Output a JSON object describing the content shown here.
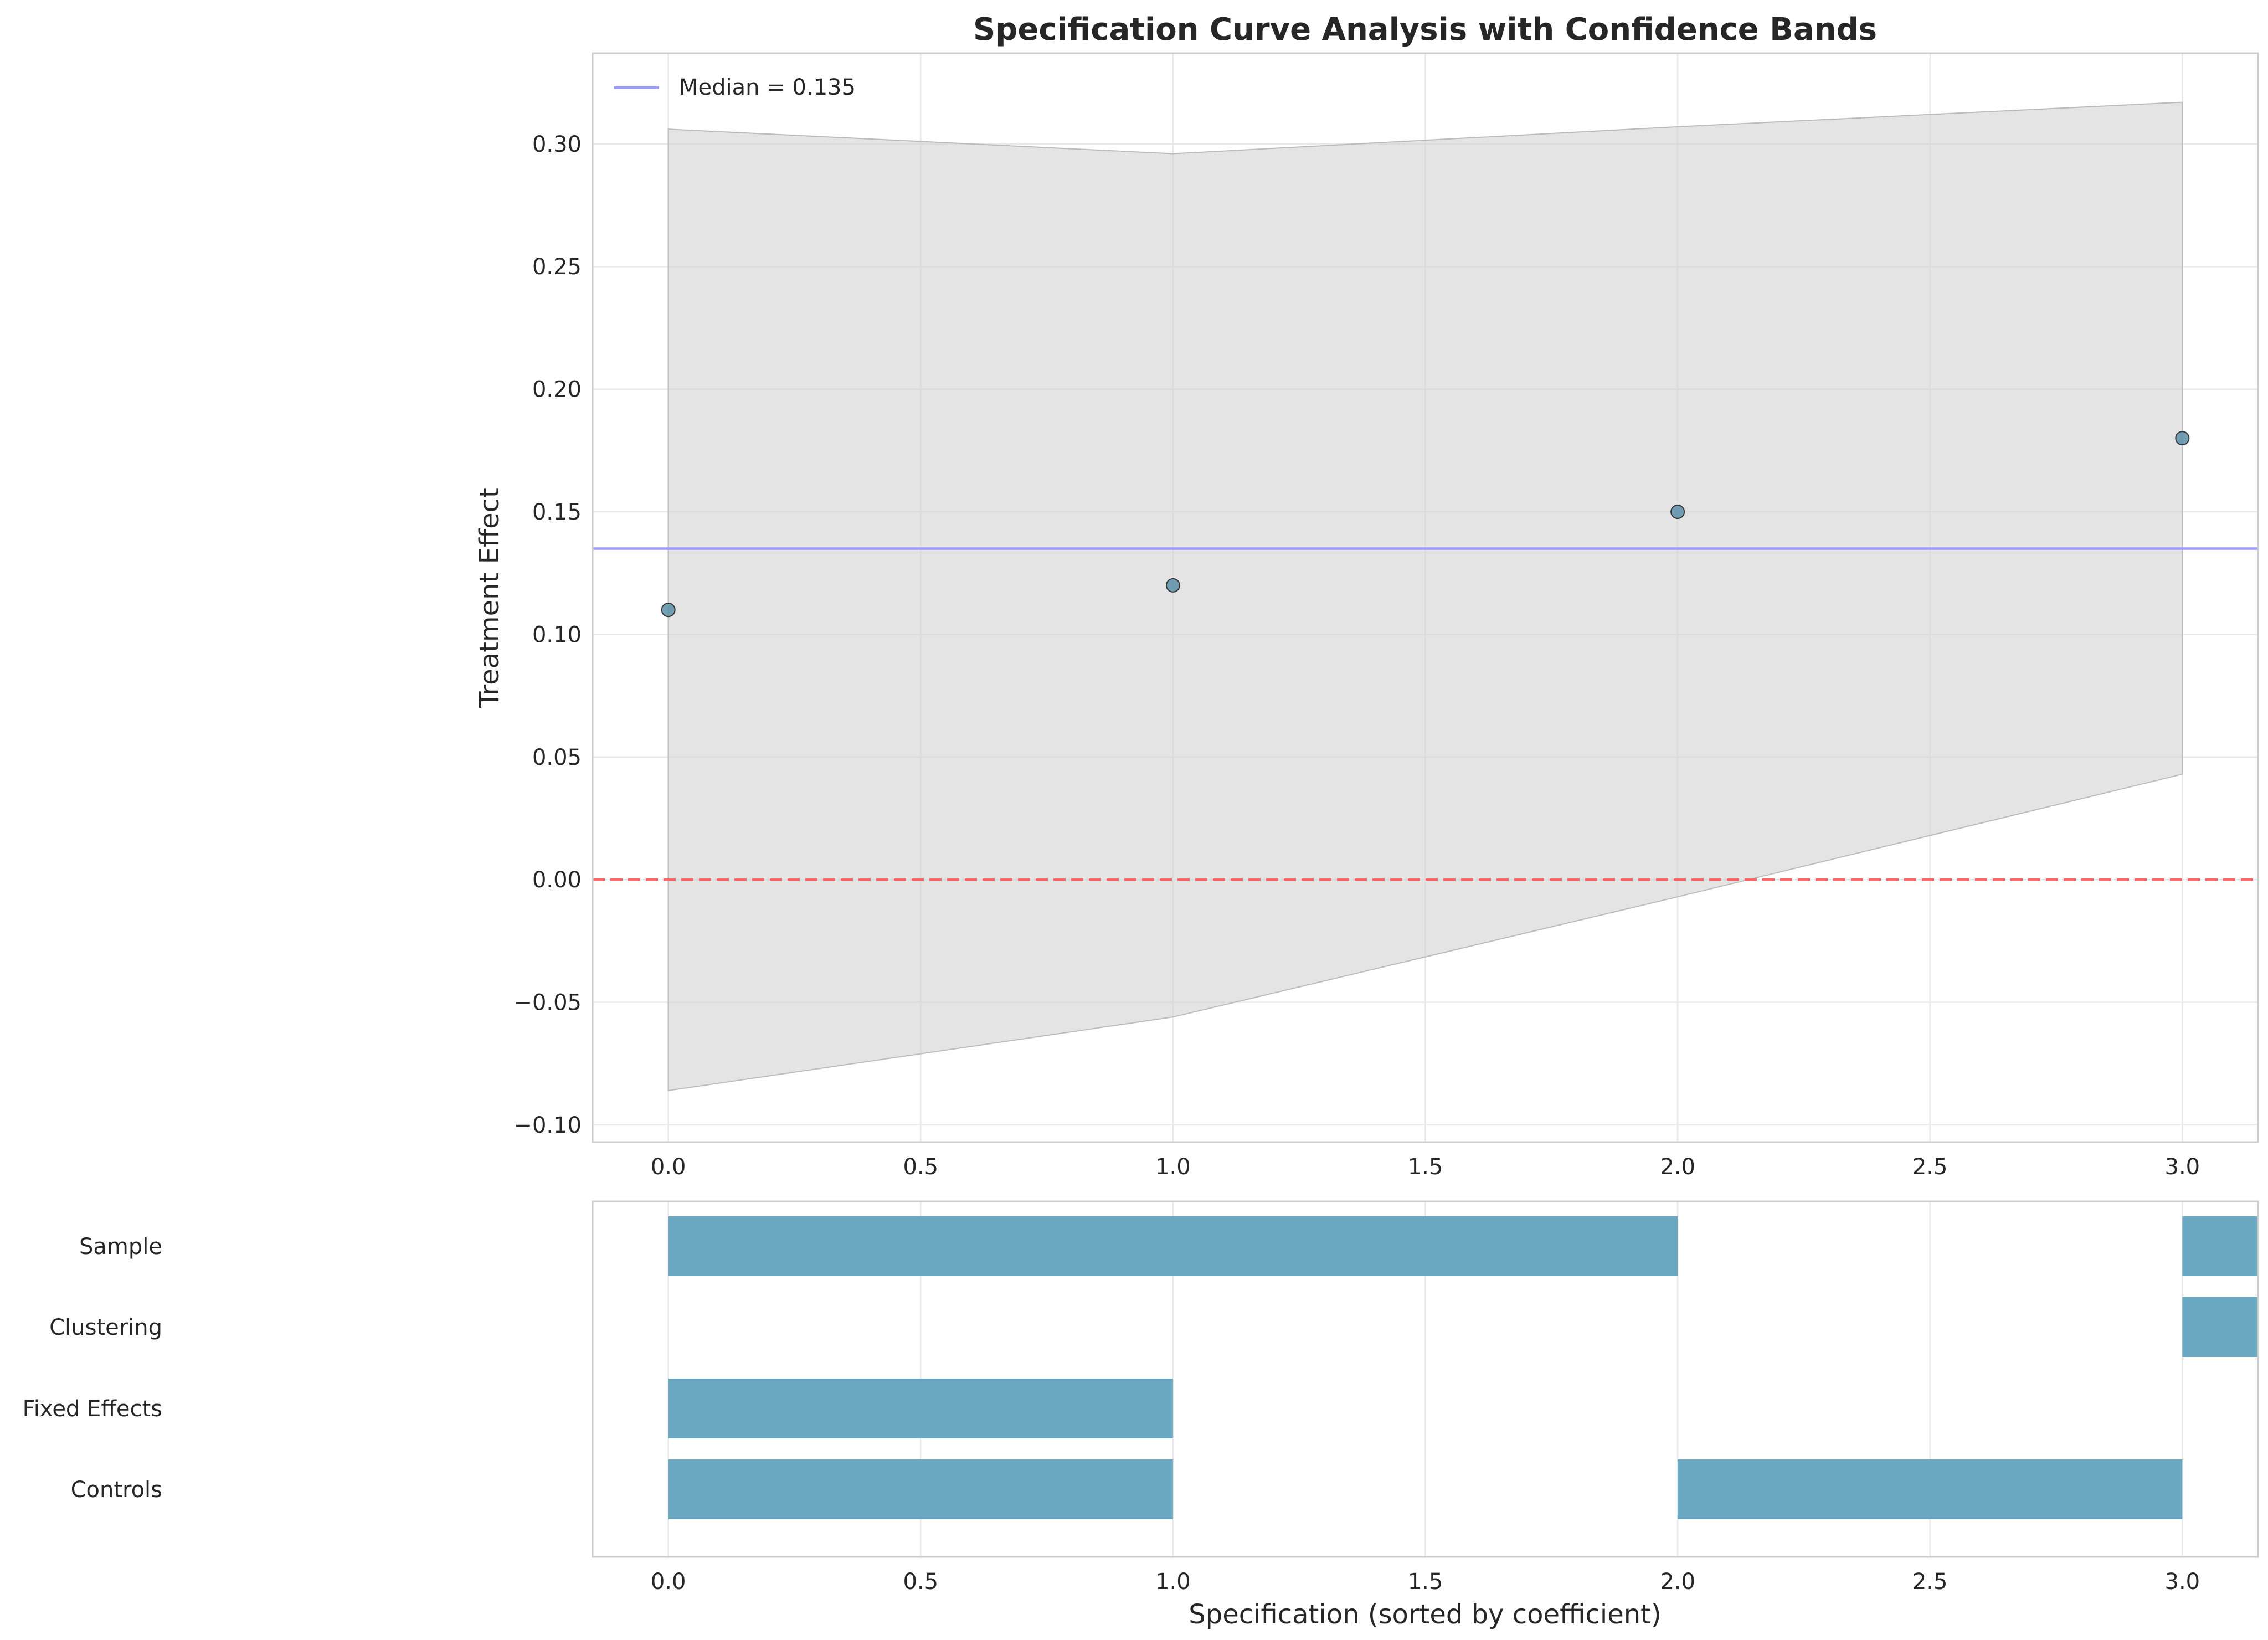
{
  "chart_data": [
    {
      "type": "scatter",
      "title": "Specification Curve Analysis with Confidence Bands",
      "xlabel": "",
      "ylabel": "Treatment Effect",
      "x": [
        0,
        1,
        2,
        3
      ],
      "y": [
        0.11,
        0.12,
        0.15,
        0.18
      ],
      "ci_lower": [
        -0.086,
        -0.056,
        -0.007,
        0.043
      ],
      "ci_upper": [
        0.306,
        0.296,
        0.307,
        0.317
      ],
      "median": 0.135,
      "median_label": "Median = 0.135",
      "zero_line": 0,
      "xlim": [
        -0.15,
        3.15
      ],
      "ylim": [
        -0.107,
        0.337
      ],
      "x_ticks": [
        "0.0",
        "0.5",
        "1.0",
        "1.5",
        "2.0",
        "2.5",
        "3.0"
      ],
      "y_ticks": [
        "−0.10",
        "−0.05",
        "0.00",
        "0.05",
        "0.10",
        "0.15",
        "0.20",
        "0.25",
        "0.30"
      ],
      "grid": true,
      "legend": "top-left",
      "colors": {
        "points": "#5b8fa8",
        "band": "#d3d3d3",
        "median_line": "#9999ff",
        "zero_line": "#ff6666"
      }
    },
    {
      "type": "bar",
      "xlabel": "Specification (sorted by coefficient)",
      "rows": [
        "Sample",
        "Clustering",
        "Fixed Effects",
        "Controls"
      ],
      "segments": [
        {
          "row": "Sample",
          "start": 0,
          "end": 2
        },
        {
          "row": "Sample",
          "start": 3,
          "end": 4
        },
        {
          "row": "Clustering",
          "start": 3,
          "end": 4
        },
        {
          "row": "Fixed Effects",
          "start": 0,
          "end": 1
        },
        {
          "row": "Controls",
          "start": 0,
          "end": 1
        },
        {
          "row": "Controls",
          "start": 2,
          "end": 3
        }
      ],
      "xlim": [
        -0.15,
        3.15
      ],
      "x_ticks": [
        "0.0",
        "0.5",
        "1.0",
        "1.5",
        "2.0",
        "2.5",
        "3.0"
      ],
      "grid": true,
      "colors": {
        "bars": "#6aa8c1"
      }
    }
  ]
}
